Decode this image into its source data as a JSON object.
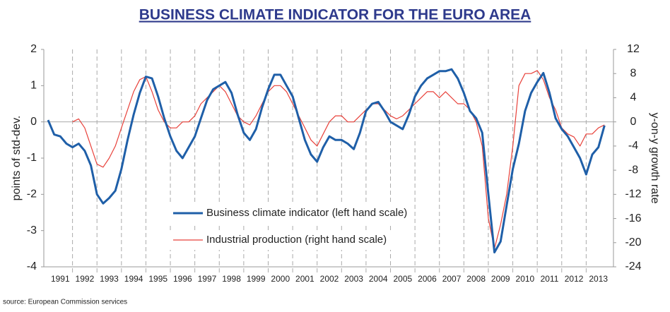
{
  "chart_data": {
    "type": "line",
    "title": "BUSINESS CLIMATE INDICATOR FOR THE EURO AREA",
    "ylabel": "points of std-dev.",
    "y2label": "y-on-y growth rate",
    "source": "source: European Commission services",
    "x": [
      1991,
      1991.25,
      1991.5,
      1991.75,
      1992,
      1992.25,
      1992.5,
      1992.75,
      1993,
      1993.25,
      1993.5,
      1993.75,
      1994,
      1994.25,
      1994.5,
      1994.75,
      1995,
      1995.25,
      1995.5,
      1995.75,
      1996,
      1996.25,
      1996.5,
      1996.75,
      1997,
      1997.25,
      1997.5,
      1997.75,
      1998,
      1998.25,
      1998.5,
      1998.75,
      1999,
      1999.25,
      1999.5,
      1999.75,
      2000,
      2000.25,
      2000.5,
      2000.75,
      2001,
      2001.25,
      2001.5,
      2001.75,
      2002,
      2002.25,
      2002.5,
      2002.75,
      2003,
      2003.25,
      2003.5,
      2003.75,
      2004,
      2004.25,
      2004.5,
      2004.75,
      2005,
      2005.25,
      2005.5,
      2005.75,
      2006,
      2006.25,
      2006.5,
      2006.75,
      2007,
      2007.25,
      2007.5,
      2007.75,
      2008,
      2008.25,
      2008.5,
      2008.75,
      2009,
      2009.25,
      2009.5,
      2009.75,
      2010,
      2010.25,
      2010.5,
      2010.75,
      2011,
      2011.25,
      2011.5,
      2011.75,
      2012,
      2012.25,
      2012.5,
      2012.75,
      2013,
      2013.25,
      2013.5,
      2013.75
    ],
    "series": [
      {
        "name": "Business climate indicator (left hand scale)",
        "color": "#1f5fa8",
        "axis": "y",
        "values": [
          0.05,
          -0.35,
          -0.4,
          -0.6,
          -0.7,
          -0.6,
          -0.8,
          -1.2,
          -2.0,
          -2.25,
          -2.1,
          -1.9,
          -1.3,
          -0.5,
          0.2,
          0.8,
          1.25,
          1.2,
          0.7,
          0.1,
          -0.4,
          -0.8,
          -1.0,
          -0.7,
          -0.4,
          0.1,
          0.6,
          0.9,
          1.0,
          1.1,
          0.8,
          0.2,
          -0.3,
          -0.5,
          -0.2,
          0.4,
          0.9,
          1.3,
          1.3,
          1.0,
          0.7,
          0.1,
          -0.5,
          -0.9,
          -1.1,
          -0.7,
          -0.4,
          -0.5,
          -0.5,
          -0.6,
          -0.75,
          -0.3,
          0.3,
          0.5,
          0.55,
          0.3,
          0.0,
          -0.1,
          -0.2,
          0.2,
          0.7,
          1.0,
          1.2,
          1.3,
          1.4,
          1.4,
          1.45,
          1.2,
          0.8,
          0.3,
          0.1,
          -0.3,
          -2.0,
          -3.6,
          -3.3,
          -2.3,
          -1.3,
          -0.6,
          0.3,
          0.8,
          1.1,
          1.35,
          0.8,
          0.1,
          -0.2,
          -0.4,
          -0.7,
          -1.0,
          -1.45,
          -0.9,
          -0.7,
          -0.1
        ]
      },
      {
        "name": "Industrial production (right hand scale)",
        "color": "#e8413a",
        "axis": "y2",
        "values": [
          null,
          null,
          null,
          null,
          0,
          0.5,
          -1,
          -4,
          -7,
          -7.5,
          -6,
          -4,
          -1,
          2,
          5,
          7,
          7.5,
          5,
          2,
          0,
          -1,
          -1,
          0,
          0,
          1,
          3,
          4,
          5,
          6,
          5,
          3,
          1,
          0,
          -0.5,
          1,
          3,
          5,
          6,
          6,
          5,
          3,
          1,
          -1,
          -3,
          -4,
          -2,
          0,
          1,
          1,
          0,
          0,
          1,
          2,
          3,
          3,
          2,
          1,
          0.5,
          1,
          2,
          3,
          4,
          5,
          5,
          4,
          5,
          4,
          3,
          3,
          2,
          0,
          -4,
          -16,
          -21,
          -17,
          -12,
          -4,
          6,
          8,
          8,
          8.5,
          7,
          4,
          2,
          -1,
          -2,
          -2.5,
          -4,
          -2,
          -2,
          -1,
          -0.5
        ]
      }
    ],
    "xlim": [
      1991,
      2014
    ],
    "xticks": [
      {
        "value": 1991.5,
        "label": "1991"
      },
      {
        "value": 1992.5,
        "label": "1992"
      },
      {
        "value": 1993.5,
        "label": "1993"
      },
      {
        "value": 1994.5,
        "label": "1994"
      },
      {
        "value": 1995.5,
        "label": "1995"
      },
      {
        "value": 1996.5,
        "label": "1996"
      },
      {
        "value": 1997.5,
        "label": "1997"
      },
      {
        "value": 1998.5,
        "label": "1998"
      },
      {
        "value": 1999.5,
        "label": "1999"
      },
      {
        "value": 2000.5,
        "label": "2000"
      },
      {
        "value": 2001.5,
        "label": "2001"
      },
      {
        "value": 2002.5,
        "label": "2002"
      },
      {
        "value": 2003.5,
        "label": "2003"
      },
      {
        "value": 2004.5,
        "label": "2004"
      },
      {
        "value": 2005.5,
        "label": "2005"
      },
      {
        "value": 2006.5,
        "label": "2006"
      },
      {
        "value": 2007.5,
        "label": "2007"
      },
      {
        "value": 2008.5,
        "label": "2008"
      },
      {
        "value": 2009.5,
        "label": "2009"
      },
      {
        "value": 2010.5,
        "label": "2010"
      },
      {
        "value": 2011.5,
        "label": "2011"
      },
      {
        "value": 2012.5,
        "label": "2012"
      },
      {
        "value": 2013.5,
        "label": "2013"
      }
    ],
    "ylim": [
      -4,
      2
    ],
    "yticks": [
      2,
      1,
      0,
      -1,
      -2,
      -3,
      -4
    ],
    "y2lim": [
      -24,
      12
    ],
    "y2ticks": [
      12,
      8,
      4,
      0,
      -4,
      -8,
      -12,
      -16,
      -20,
      -24
    ]
  }
}
